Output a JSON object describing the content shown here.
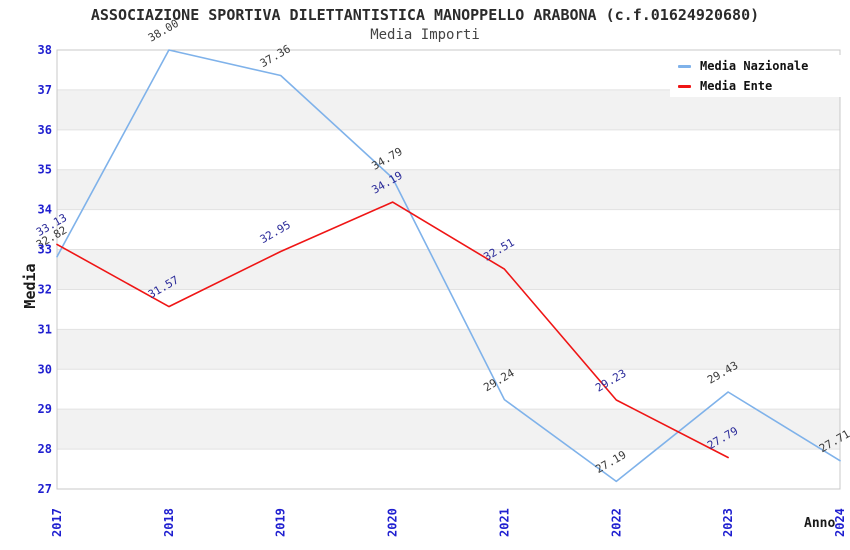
{
  "chart_data": {
    "type": "line",
    "title": "ASSOCIAZIONE SPORTIVA DILETTANTISTICA MANOPPELLO ARABONA (c.f.01624920680)",
    "subtitle": "Media Importi",
    "xlabel": "Anno",
    "ylabel": "Media",
    "x": [
      2017,
      2018,
      2019,
      2020,
      2021,
      2022,
      2023,
      2024
    ],
    "ylim": [
      27,
      38
    ],
    "ytick_step": 1,
    "grid": "horizontal",
    "legend_position": "top-right",
    "series": [
      {
        "name": "Media Nazionale",
        "color": "#7fb2ea",
        "label_color": "#3a3a3a",
        "values": [
          32.82,
          38.0,
          37.36,
          34.79,
          29.24,
          27.19,
          29.43,
          27.71
        ]
      },
      {
        "name": "Media Ente",
        "color": "#ef1515",
        "label_color": "#2a2a99",
        "values": [
          33.13,
          31.57,
          32.95,
          34.19,
          32.51,
          29.23,
          27.79,
          null
        ]
      }
    ],
    "style": {
      "tick_label_color": "#1f1fd0",
      "grid_color": "#e2e2e2",
      "band_color": "#f2f2f2",
      "frame_color": "#c8c8c8",
      "background": "#ffffff"
    }
  }
}
